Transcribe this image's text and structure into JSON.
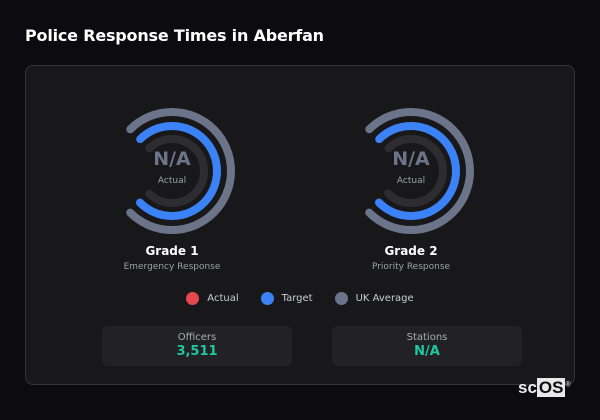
{
  "title": "Police Response Times in Aberfan",
  "colors": {
    "actual": "#e5484d",
    "target": "#3b82f6",
    "uk_average": "#6b7488",
    "accent": "#1fc8a0"
  },
  "gauges": [
    {
      "value": "N/A",
      "value_label": "Actual",
      "name": "Grade 1",
      "subtitle": "Emergency Response"
    },
    {
      "value": "N/A",
      "value_label": "Actual",
      "name": "Grade 2",
      "subtitle": "Priority Response"
    }
  ],
  "legend": [
    {
      "label": "Actual",
      "color": "#e5484d"
    },
    {
      "label": "Target",
      "color": "#3b82f6"
    },
    {
      "label": "UK Average",
      "color": "#6b7488"
    }
  ],
  "stats": [
    {
      "label": "Officers",
      "value": "3,511"
    },
    {
      "label": "Stations",
      "value": "N/A"
    }
  ],
  "logo": {
    "text_a": "sc",
    "text_b": "OS",
    "mark": "®"
  }
}
